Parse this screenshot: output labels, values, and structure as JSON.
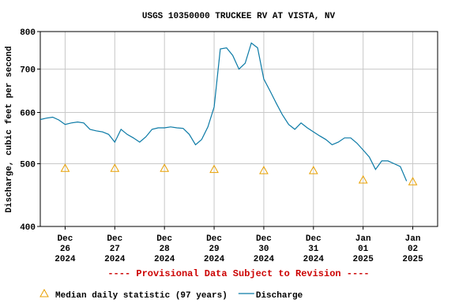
{
  "chart_data": {
    "type": "line",
    "title": "USGS 10350000 TRUCKEE RV AT VISTA, NV",
    "y_label": "Discharge, cubic feet per second",
    "note": "---- Provisional Data Subject to Revision ----",
    "log_y": true,
    "grid": true,
    "ylim": [
      400,
      800
    ],
    "yticks": [
      400,
      500,
      600,
      700,
      800
    ],
    "xlim": [
      "2024-12-25T12:00",
      "2025-01-02T12:00"
    ],
    "xticks": [
      {
        "value": "2024-12-26",
        "label": "Dec\n26\n2024"
      },
      {
        "value": "2024-12-27",
        "label": "Dec\n27\n2024"
      },
      {
        "value": "2024-12-28",
        "label": "Dec\n28\n2024"
      },
      {
        "value": "2024-12-29",
        "label": "Dec\n29\n2024"
      },
      {
        "value": "2024-12-30",
        "label": "Dec\n30\n2024"
      },
      {
        "value": "2024-12-31",
        "label": "Dec\n31\n2024"
      },
      {
        "value": "2025-01-01",
        "label": "Jan\n01\n2025"
      },
      {
        "value": "2025-01-02",
        "label": "Jan\n02\n2025"
      }
    ],
    "series": [
      {
        "name": "Median daily statistic (97 years)",
        "color": "#e8a000",
        "marker": "triangle",
        "x": [
          "2024-12-26",
          "2024-12-27",
          "2024-12-28",
          "2024-12-29",
          "2024-12-30",
          "2024-12-31",
          "2025-01-01",
          "2025-01-02"
        ],
        "values": [
          492,
          492,
          492,
          490,
          488,
          488,
          472,
          469
        ]
      },
      {
        "name": "Discharge",
        "color": "#0b7aa6",
        "marker": "line",
        "x": [
          "2024-12-25T12:00",
          "2024-12-25T15:00",
          "2024-12-25T18:00",
          "2024-12-25T21:00",
          "2024-12-26T00:00",
          "2024-12-26T03:00",
          "2024-12-26T06:00",
          "2024-12-26T09:00",
          "2024-12-26T12:00",
          "2024-12-26T15:00",
          "2024-12-26T18:00",
          "2024-12-26T21:00",
          "2024-12-27T00:00",
          "2024-12-27T03:00",
          "2024-12-27T06:00",
          "2024-12-27T09:00",
          "2024-12-27T12:00",
          "2024-12-27T15:00",
          "2024-12-27T18:00",
          "2024-12-27T21:00",
          "2024-12-28T00:00",
          "2024-12-28T03:00",
          "2024-12-28T06:00",
          "2024-12-28T09:00",
          "2024-12-28T12:00",
          "2024-12-28T15:00",
          "2024-12-28T18:00",
          "2024-12-28T21:00",
          "2024-12-29T00:00",
          "2024-12-29T03:00",
          "2024-12-29T06:00",
          "2024-12-29T09:00",
          "2024-12-29T12:00",
          "2024-12-29T15:00",
          "2024-12-29T18:00",
          "2024-12-29T21:00",
          "2024-12-30T00:00",
          "2024-12-30T03:00",
          "2024-12-30T06:00",
          "2024-12-30T09:00",
          "2024-12-30T12:00",
          "2024-12-30T15:00",
          "2024-12-30T18:00",
          "2024-12-30T21:00",
          "2024-12-31T00:00",
          "2024-12-31T03:00",
          "2024-12-31T06:00",
          "2024-12-31T09:00",
          "2024-12-31T12:00",
          "2024-12-31T15:00",
          "2024-12-31T18:00",
          "2024-12-31T21:00",
          "2025-01-01T00:00",
          "2025-01-01T03:00",
          "2025-01-01T06:00",
          "2025-01-01T09:00",
          "2025-01-01T12:00",
          "2025-01-01T15:00",
          "2025-01-01T18:00",
          "2025-01-01T21:00"
        ],
        "values": [
          585,
          588,
          590,
          584,
          575,
          578,
          580,
          578,
          565,
          562,
          560,
          555,
          540,
          565,
          555,
          548,
          540,
          550,
          565,
          568,
          568,
          570,
          568,
          567,
          555,
          535,
          545,
          570,
          612,
          752,
          755,
          735,
          700,
          715,
          768,
          755,
          676,
          648,
          620,
          595,
          575,
          565,
          578,
          568,
          560,
          552,
          545,
          535,
          540,
          548,
          548,
          538,
          525,
          512,
          490,
          505,
          505,
          500,
          495,
          470
        ]
      }
    ]
  }
}
